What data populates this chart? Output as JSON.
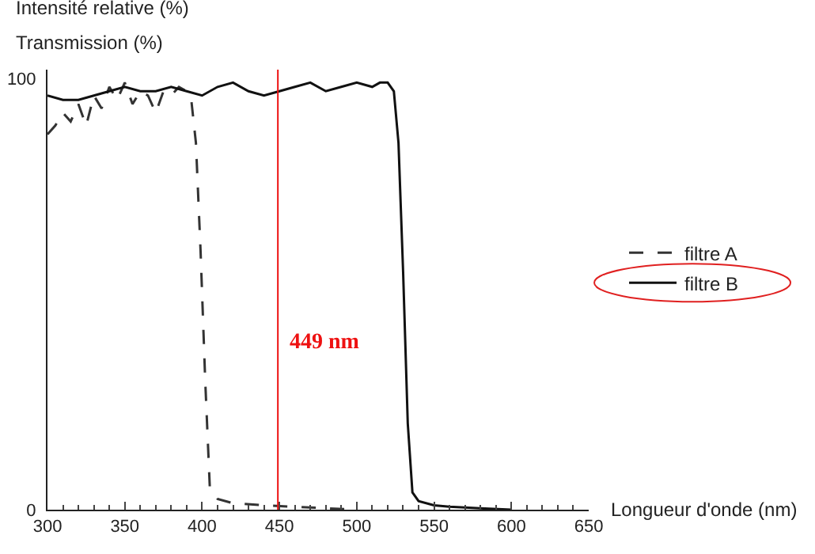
{
  "chart_data": {
    "type": "line",
    "title": "Intensité relative (%)",
    "ylabel": "Transmission (%)",
    "xlabel": "Longueur d'onde (nm)",
    "xlim": [
      300,
      650
    ],
    "xticks": [
      300,
      350,
      400,
      450,
      500,
      550,
      600,
      650
    ],
    "ylim": [
      0,
      102
    ],
    "yticks": [
      0,
      100
    ],
    "grid": false,
    "legend": "right",
    "marker": "none",
    "series": [
      {
        "name": "filtre A",
        "color": "#333333",
        "line_style": "dashed",
        "x": [
          300,
          305,
          310,
          315,
          320,
          325,
          330,
          335,
          340,
          345,
          350,
          355,
          360,
          365,
          370,
          375,
          380,
          385,
          390,
          393,
          396,
          399,
          402,
          405,
          410,
          420,
          440,
          470,
          500
        ],
        "values": [
          87,
          89,
          92,
          90,
          94,
          89,
          96,
          93,
          98,
          95,
          99,
          94,
          97,
          96,
          92,
          97,
          96,
          98,
          97,
          95,
          85,
          60,
          30,
          5,
          2.5,
          1.5,
          1,
          0.5,
          0
        ]
      },
      {
        "name": "filtre B",
        "color": "#111111",
        "line_style": "solid",
        "x": [
          300,
          310,
          320,
          330,
          340,
          350,
          360,
          370,
          380,
          390,
          400,
          410,
          420,
          430,
          440,
          450,
          460,
          470,
          480,
          490,
          500,
          510,
          515,
          520,
          524,
          527,
          530,
          533,
          536,
          540,
          550,
          560,
          580,
          600
        ],
        "values": [
          96,
          95,
          95,
          96,
          97,
          98,
          97,
          97,
          98,
          97,
          96,
          98,
          99,
          97,
          96,
          97,
          98,
          99,
          97,
          98,
          99,
          98,
          99,
          99,
          97,
          85,
          55,
          20,
          4,
          2,
          1,
          0.7,
          0.3,
          0
        ]
      }
    ],
    "ref_lines": [
      {
        "axis": "x",
        "value": 449,
        "label": "449 nm",
        "color": "#ee1111"
      }
    ]
  }
}
